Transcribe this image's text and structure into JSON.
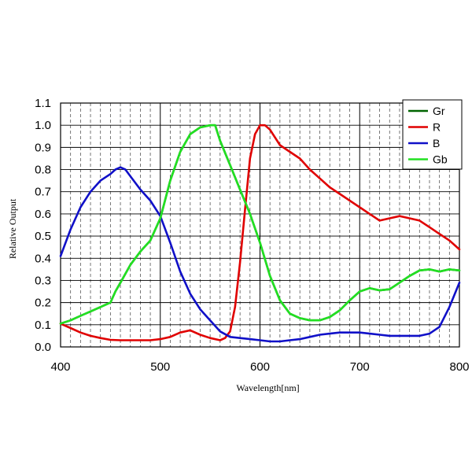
{
  "chart_data": {
    "type": "line",
    "xlabel": "Wavelength[nm]",
    "ylabel": "Relative Output",
    "xlim": [
      400,
      800
    ],
    "ylim": [
      0,
      1.1
    ],
    "x_ticks": [
      400,
      500,
      600,
      700,
      800
    ],
    "x_tick_labels": [
      "400",
      "500",
      "600",
      "700",
      "800"
    ],
    "y_ticks": [
      0,
      0.1,
      0.2,
      0.3,
      0.4,
      0.5,
      0.6,
      0.7,
      0.8,
      0.9,
      1.0,
      1.1
    ],
    "y_tick_labels": [
      "0.0",
      "0.1",
      "0.2",
      "0.3",
      "0.4",
      "0.5",
      "0.6",
      "0.7",
      "0.8",
      "0.9",
      "1.0",
      "1.1"
    ],
    "grid": true,
    "legend_position": "top-right",
    "series": [
      {
        "name": "Gr",
        "color": "#006400",
        "x": [
          400,
          410,
          420,
          430,
          440,
          450,
          455,
          460,
          470,
          480,
          490,
          500,
          510,
          520,
          530,
          540,
          550,
          555,
          560,
          570,
          580,
          590,
          600,
          610,
          620,
          630,
          640,
          650,
          660,
          670,
          680,
          690,
          700,
          710,
          720,
          730,
          740,
          750,
          760,
          770,
          780,
          790,
          800
        ],
        "y": [
          0.105,
          0.12,
          0.14,
          0.16,
          0.18,
          0.2,
          0.25,
          0.29,
          0.37,
          0.43,
          0.48,
          0.58,
          0.75,
          0.88,
          0.96,
          0.99,
          1.0,
          1.0,
          0.93,
          0.82,
          0.71,
          0.6,
          0.47,
          0.32,
          0.21,
          0.15,
          0.13,
          0.12,
          0.12,
          0.135,
          0.165,
          0.21,
          0.25,
          0.265,
          0.255,
          0.26,
          0.29,
          0.32,
          0.345,
          0.35,
          0.34,
          0.35,
          0.345
        ]
      },
      {
        "name": "R",
        "color": "#e00000",
        "x": [
          400,
          410,
          420,
          430,
          440,
          450,
          460,
          470,
          480,
          490,
          500,
          510,
          520,
          530,
          540,
          550,
          560,
          565,
          570,
          575,
          580,
          585,
          590,
          595,
          600,
          605,
          610,
          620,
          630,
          640,
          650,
          660,
          670,
          680,
          690,
          700,
          710,
          720,
          730,
          740,
          750,
          760,
          770,
          780,
          790,
          800
        ],
        "y": [
          0.105,
          0.085,
          0.065,
          0.05,
          0.04,
          0.032,
          0.03,
          0.03,
          0.03,
          0.03,
          0.035,
          0.045,
          0.065,
          0.075,
          0.055,
          0.04,
          0.03,
          0.04,
          0.07,
          0.18,
          0.38,
          0.62,
          0.85,
          0.96,
          1.0,
          1.0,
          0.98,
          0.91,
          0.88,
          0.85,
          0.8,
          0.76,
          0.72,
          0.69,
          0.66,
          0.63,
          0.6,
          0.57,
          0.58,
          0.59,
          0.58,
          0.57,
          0.54,
          0.51,
          0.48,
          0.44
        ]
      },
      {
        "name": "B",
        "color": "#1010c8",
        "x": [
          400,
          410,
          420,
          430,
          440,
          450,
          455,
          460,
          465,
          470,
          480,
          490,
          500,
          510,
          520,
          530,
          540,
          550,
          560,
          570,
          580,
          590,
          600,
          610,
          620,
          630,
          640,
          650,
          660,
          670,
          680,
          690,
          700,
          710,
          720,
          730,
          740,
          750,
          760,
          770,
          780,
          790,
          800
        ],
        "y": [
          0.41,
          0.53,
          0.63,
          0.7,
          0.75,
          0.78,
          0.8,
          0.81,
          0.8,
          0.77,
          0.71,
          0.66,
          0.59,
          0.47,
          0.34,
          0.24,
          0.17,
          0.12,
          0.07,
          0.045,
          0.04,
          0.035,
          0.03,
          0.025,
          0.025,
          0.03,
          0.035,
          0.045,
          0.055,
          0.06,
          0.065,
          0.065,
          0.065,
          0.06,
          0.055,
          0.05,
          0.05,
          0.05,
          0.05,
          0.06,
          0.09,
          0.18,
          0.29
        ]
      },
      {
        "name": "Gb",
        "color": "#22e022",
        "x": [
          400,
          410,
          420,
          430,
          440,
          450,
          455,
          460,
          470,
          480,
          490,
          500,
          510,
          520,
          530,
          540,
          550,
          555,
          560,
          570,
          580,
          590,
          600,
          610,
          620,
          630,
          640,
          650,
          660,
          670,
          680,
          690,
          700,
          710,
          720,
          730,
          740,
          750,
          760,
          770,
          780,
          790,
          800
        ],
        "y": [
          0.105,
          0.12,
          0.14,
          0.16,
          0.18,
          0.2,
          0.25,
          0.29,
          0.37,
          0.43,
          0.48,
          0.58,
          0.75,
          0.88,
          0.96,
          0.99,
          1.0,
          1.0,
          0.93,
          0.82,
          0.71,
          0.6,
          0.47,
          0.32,
          0.21,
          0.15,
          0.13,
          0.12,
          0.12,
          0.135,
          0.165,
          0.21,
          0.25,
          0.265,
          0.255,
          0.26,
          0.29,
          0.32,
          0.345,
          0.35,
          0.34,
          0.35,
          0.345
        ]
      }
    ]
  }
}
